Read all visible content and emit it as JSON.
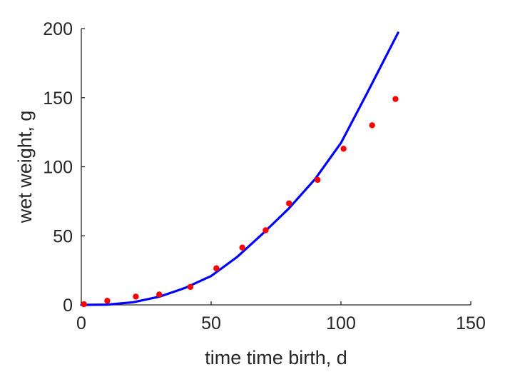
{
  "chart_data": {
    "type": "scatter",
    "title": "",
    "xlabel": "time time birth, d",
    "ylabel": "wet weight, g",
    "xlim": [
      0,
      150
    ],
    "ylim": [
      0,
      200
    ],
    "xticks": [
      "0",
      "50",
      "100",
      "150"
    ],
    "yticks": [
      "0",
      "50",
      "100",
      "150",
      "200"
    ],
    "grid": false,
    "legend": "none",
    "series": [
      {
        "kind": "points",
        "color": "#ff0000",
        "x": [
          1,
          10,
          21,
          30,
          42,
          52,
          62,
          71,
          80,
          91,
          101,
          112,
          121
        ],
        "y": [
          0.5,
          3,
          6,
          7.5,
          13,
          26.5,
          41.5,
          54,
          73.5,
          90.5,
          113,
          130,
          149
        ]
      },
      {
        "kind": "line",
        "color": "#0000ff",
        "x": [
          0,
          10,
          20,
          30,
          40,
          50,
          60,
          70,
          80,
          90,
          100,
          110,
          122
        ],
        "y": [
          0,
          0.2,
          1.9,
          5.9,
          12.3,
          20.9,
          34.7,
          51.8,
          69.9,
          91.0,
          117.2,
          153.0,
          197.0
        ]
      }
    ]
  }
}
